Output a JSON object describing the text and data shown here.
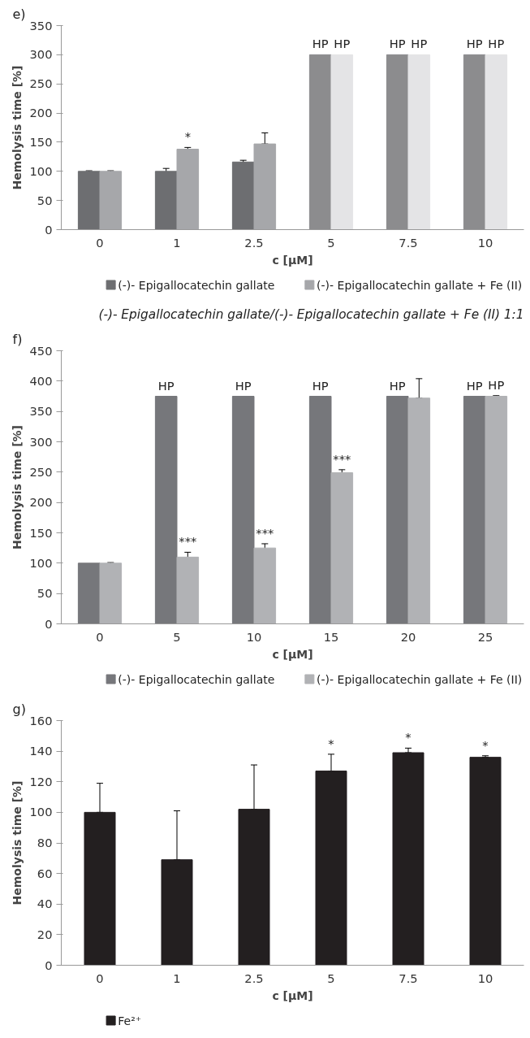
{
  "chart_data": [
    {
      "type": "bar",
      "annotations": [
        "e)"
      ],
      "xlabel": "c [µM]",
      "ylabel": "Hemolysis time [%]",
      "categories": [
        "0",
        "1",
        "2.5",
        "5",
        "7.5",
        "10"
      ],
      "ylim": [
        0,
        350
      ],
      "yticks": [
        0,
        50,
        100,
        150,
        200,
        250,
        300,
        350
      ],
      "legend": "bottom",
      "grid": false,
      "series": [
        {
          "name": "(-)- Epigallocatechin gallate",
          "color": "#6d6e71",
          "colors": [
            "#6d6e71",
            "#6d6e71",
            "#6d6e71",
            "#8c8c8e",
            "#8c8c8e",
            "#8c8c8e"
          ],
          "values": [
            100,
            100,
            116,
            300,
            300,
            300
          ],
          "errors": [
            1,
            5,
            3,
            null,
            null,
            null
          ],
          "value_labels": [
            null,
            null,
            null,
            "HP",
            "HP",
            "HP"
          ]
        },
        {
          "name": "(-)- Epigallocatechin gallate + Fe (II)",
          "color": "#a6a7aa",
          "colors": [
            "#a6a7aa",
            "#a6a7aa",
            "#a6a7aa",
            "#e4e4e6",
            "#e4e4e6",
            "#e4e4e6"
          ],
          "values": [
            100,
            138,
            147,
            300,
            300,
            300
          ],
          "errors": [
            1,
            3,
            [
              147,
              166
            ],
            null,
            null,
            null
          ],
          "value_labels": [
            null,
            "*",
            null,
            "HP",
            "HP",
            "HP"
          ]
        }
      ]
    },
    {
      "type": "bar",
      "title": "(-)- Epigallocatechin gallate/(-)- Epigallocatechin gallate + Fe (II) 1:1",
      "annotations": [
        "f)"
      ],
      "xlabel": "c [µM]",
      "ylabel": "Hemolysis time [%]",
      "categories": [
        "0",
        "5",
        "10",
        "15",
        "20",
        "25"
      ],
      "ylim": [
        0,
        450
      ],
      "yticks": [
        0,
        50,
        100,
        150,
        200,
        250,
        300,
        350,
        400,
        450
      ],
      "legend": "bottom",
      "grid": false,
      "series": [
        {
          "name": "(-)- Epigallocatechin gallate",
          "color": "#76777b",
          "values": [
            100,
            375,
            375,
            375,
            375,
            375
          ],
          "value_labels": [
            null,
            "HP",
            "HP",
            "HP",
            "HP",
            "HP"
          ]
        },
        {
          "name": "(-)- Epigallocatechin gallate + Fe (II)",
          "color": "#b1b2b5",
          "values": [
            100,
            110,
            125,
            249,
            372,
            375
          ],
          "errors": [
            1,
            8,
            7,
            5,
            [
              372,
              404
            ],
            1
          ],
          "value_labels": [
            null,
            "***",
            "***",
            "***",
            null,
            "HP"
          ]
        }
      ]
    },
    {
      "type": "bar",
      "annotations": [
        "g)"
      ],
      "xlabel": "c [µM]",
      "ylabel": "Hemolysis time [%]",
      "categories": [
        "0",
        "1",
        "2.5",
        "5",
        "7.5",
        "10"
      ],
      "ylim": [
        0,
        160
      ],
      "yticks": [
        0,
        20,
        40,
        60,
        80,
        100,
        120,
        140,
        160
      ],
      "legend": "bottom",
      "grid": false,
      "series": [
        {
          "name": "Fe²⁺",
          "color": "#231f20",
          "values": [
            100,
            69,
            102,
            127,
            139,
            136
          ],
          "errors": [
            [
              100,
              119
            ],
            [
              69,
              101
            ],
            [
              102,
              131
            ],
            [
              127,
              138
            ],
            [
              139,
              142
            ],
            [
              136,
              137
            ]
          ],
          "value_labels": [
            null,
            null,
            null,
            "*",
            "*",
            "*"
          ]
        }
      ]
    }
  ]
}
